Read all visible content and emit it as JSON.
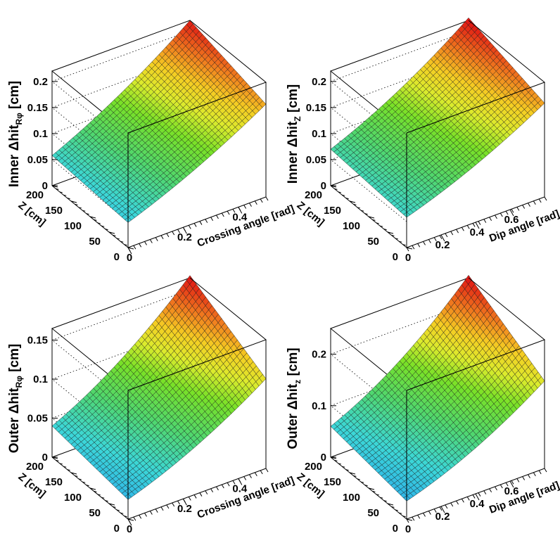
{
  "chart_data": [
    {
      "type": "surface",
      "title": "",
      "zlabel": "Inner Δhit",
      "zlabel_sub": "Rφ",
      "zlabel_unit": " [cm]",
      "xlabel": "Crossing angle [rad]",
      "ylabel": "Z [cm]",
      "xlim": [
        0,
        0.5
      ],
      "ylim": [
        0,
        200
      ],
      "zlim": [
        0,
        0.22
      ],
      "xticks": [
        {
          "v": 0,
          "label": "0"
        },
        {
          "v": 0.2,
          "label": "0.2"
        },
        {
          "v": 0.4,
          "label": "0.4"
        }
      ],
      "yticks": [
        {
          "v": 0,
          "label": "0"
        },
        {
          "v": 50,
          "label": "50"
        },
        {
          "v": 100,
          "label": "100"
        },
        {
          "v": 150,
          "label": "150"
        },
        {
          "v": 200,
          "label": "200"
        }
      ],
      "zticks": [
        {
          "v": 0,
          "label": "0"
        },
        {
          "v": 0.05,
          "label": "0.05"
        },
        {
          "v": 0.1,
          "label": "0.1"
        },
        {
          "v": 0.15,
          "label": "0.15"
        },
        {
          "v": 0.2,
          "label": "0.2"
        }
      ],
      "corner_values": {
        "x0_y0": 0.048,
        "x0_y200": 0.058,
        "xmax_y0": 0.178,
        "xmax_y200": 0.22
      },
      "x_curvature": 0.25,
      "grid_size": [
        40,
        24
      ]
    },
    {
      "type": "surface",
      "title": "",
      "zlabel": "Inner Δhit",
      "zlabel_sub": "Z",
      "zlabel_unit": " [cm]",
      "xlabel": "Dip angle [rad]",
      "ylabel": "Z [cm]",
      "xlim": [
        0,
        0.8
      ],
      "ylim": [
        0,
        200
      ],
      "zlim": [
        0,
        0.22
      ],
      "xticks": [
        {
          "v": 0.2,
          "label": "0.2"
        },
        {
          "v": 0.4,
          "label": "0.4"
        },
        {
          "v": 0.6,
          "label": "0.6"
        }
      ],
      "x_origin_label": "0",
      "yticks": [
        {
          "v": 0,
          "label": "0"
        },
        {
          "v": 50,
          "label": "50"
        },
        {
          "v": 100,
          "label": "100"
        },
        {
          "v": 150,
          "label": "150"
        },
        {
          "v": 200,
          "label": "200"
        }
      ],
      "zticks": [
        {
          "v": 0,
          "label": "0"
        },
        {
          "v": 0.05,
          "label": "0.05"
        },
        {
          "v": 0.1,
          "label": "0.1"
        },
        {
          "v": 0.15,
          "label": "0.15"
        },
        {
          "v": 0.2,
          "label": "0.2"
        }
      ],
      "corner_values": {
        "x0_y0": 0.058,
        "x0_y200": 0.07,
        "xmax_y0": 0.18,
        "xmax_y200": 0.225
      },
      "x_curvature": 0.3,
      "grid_size": [
        40,
        24
      ]
    },
    {
      "type": "surface",
      "title": "",
      "zlabel": "Outer Δhit",
      "zlabel_sub": "Rφ",
      "zlabel_unit": " [cm]",
      "xlabel": "Crossing angle [rad]",
      "ylabel": "Z [cm]",
      "xlim": [
        0,
        0.5
      ],
      "ylim": [
        0,
        200
      ],
      "zlim": [
        0,
        0.165
      ],
      "xticks": [
        {
          "v": 0,
          "label": "0"
        },
        {
          "v": 0.2,
          "label": "0.2"
        },
        {
          "v": 0.4,
          "label": "0.4"
        }
      ],
      "yticks": [
        {
          "v": 0,
          "label": "0"
        },
        {
          "v": 50,
          "label": "50"
        },
        {
          "v": 100,
          "label": "100"
        },
        {
          "v": 150,
          "label": "150"
        },
        {
          "v": 200,
          "label": "200"
        }
      ],
      "zticks": [
        {
          "v": 0,
          "label": "0"
        },
        {
          "v": 0.05,
          "label": "0.05"
        },
        {
          "v": 0.1,
          "label": "0.1"
        },
        {
          "v": 0.15,
          "label": "0.15"
        }
      ],
      "corner_values": {
        "x0_y0": 0.025,
        "x0_y200": 0.04,
        "xmax_y0": 0.115,
        "xmax_y200": 0.168
      },
      "x_curvature": 0.35,
      "grid_size": [
        40,
        24
      ]
    },
    {
      "type": "surface",
      "title": "",
      "zlabel": "Outer Δhit",
      "zlabel_sub": "z",
      "zlabel_unit": " [cm]",
      "xlabel": "Dip angle [rad]",
      "ylabel": "Z [cm]",
      "xlim": [
        0,
        0.8
      ],
      "ylim": [
        0,
        200
      ],
      "zlim": [
        0,
        0.25
      ],
      "xticks": [
        {
          "v": 0.2,
          "label": "0.2"
        },
        {
          "v": 0.4,
          "label": "0.4"
        },
        {
          "v": 0.6,
          "label": "0.6"
        }
      ],
      "x_origin_label": "0",
      "yticks": [
        {
          "v": 0,
          "label": "0"
        },
        {
          "v": 50,
          "label": "50"
        },
        {
          "v": 100,
          "label": "100"
        },
        {
          "v": 150,
          "label": "150"
        },
        {
          "v": 200,
          "label": "200"
        }
      ],
      "zticks": [
        {
          "v": 0,
          "label": "0"
        },
        {
          "v": 0.1,
          "label": "0.1"
        },
        {
          "v": 0.2,
          "label": "0.2"
        }
      ],
      "corner_values": {
        "x0_y0": 0.035,
        "x0_y200": 0.06,
        "xmax_y0": 0.17,
        "xmax_y200": 0.255
      },
      "x_curvature": 0.4,
      "grid_size": [
        40,
        24
      ]
    }
  ]
}
